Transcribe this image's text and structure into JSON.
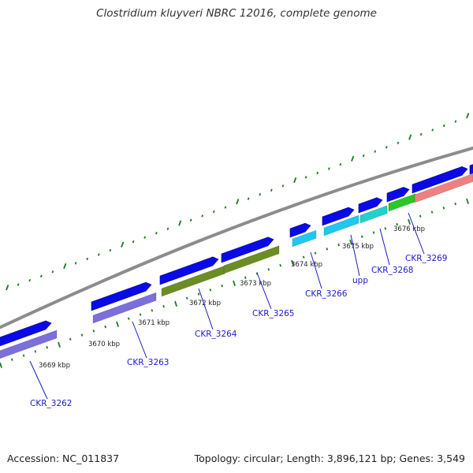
{
  "title": "Clostridium kluyveri NBRC 12016, complete genome",
  "footer": {
    "accession": "Accession: NC_011837",
    "summary": "Topology: circular; Length: 3,896,121 bp; Genes: 3,549"
  },
  "colors": {
    "backbone": "#8c8c8c",
    "cds_strand": "#0a0ae6",
    "ticks": "#1f7a1f",
    "label_text": "#1a1acc",
    "leader_line": "#1a1acc"
  },
  "tick_labels": [
    "3669 kbp",
    "3670 kbp",
    "3671 kbp",
    "3672 kbp",
    "3673 kbp",
    "3674 kbp",
    "3675 kbp",
    "3676 kbp"
  ],
  "genes": [
    {
      "label": "CKR_3262",
      "cog_color": "#7b6fdc"
    },
    {
      "label": "CKR_3263",
      "cog_color": "#7b6fdc"
    },
    {
      "label": "CKR_3264",
      "cog_color": "#6b8e23"
    },
    {
      "label": "CKR_3265",
      "cog_color": "#6b8e23"
    },
    {
      "label": "CKR_3266",
      "cog_color": "#1ec8f0"
    },
    {
      "label": "upp",
      "cog_color": "#1ec8f0"
    },
    {
      "label": "CKR_3268",
      "cog_color": "#20d2c8"
    },
    {
      "label": "CKR_3269",
      "cog_color": "#28c828"
    },
    {
      "label": "",
      "cog_color": "#f08080"
    }
  ]
}
